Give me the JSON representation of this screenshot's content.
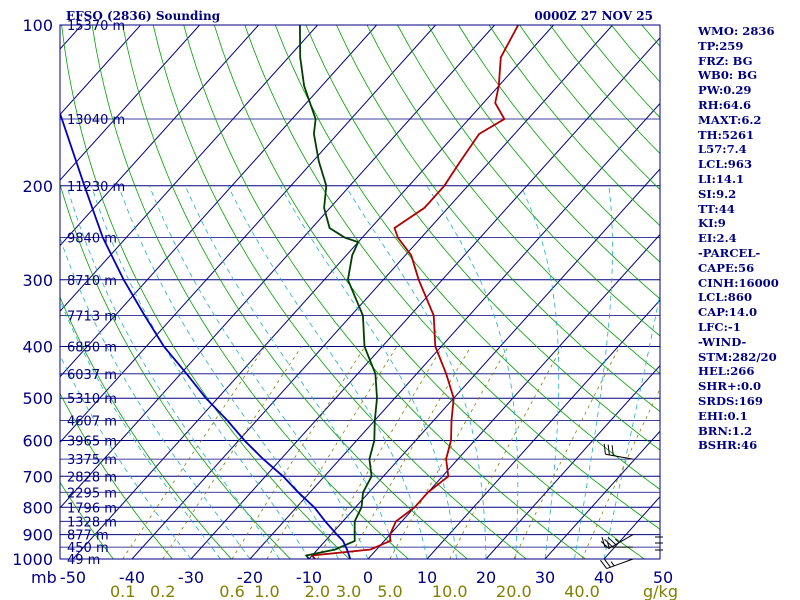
{
  "chart_data": {
    "type": "skew-t",
    "title": "EFSO (2836) Sounding",
    "valid_time": "0000Z 27 NOV 25",
    "pressure_levels_mb": [
      100,
      200,
      300,
      400,
      500,
      600,
      700,
      800,
      900,
      1000
    ],
    "y_axis_unit": "mb",
    "x_axis_temperature_ticks": [
      -50,
      -40,
      -30,
      -20,
      -10,
      0,
      10,
      20,
      30,
      40,
      50
    ],
    "x_axis_mixing_ratio_ticks": [
      "0.1",
      "0.2",
      "0.6",
      "1.0",
      "2.0",
      "3.0",
      "5.0",
      "10.0",
      "20.0",
      "40.0"
    ],
    "x_axis_mixing_ratio_unit": "g/kg",
    "height_labels": [
      {
        "p": 100,
        "text": "15370 m"
      },
      {
        "p": 150,
        "text": "13040 m"
      },
      {
        "p": 200,
        "text": "11230 m"
      },
      {
        "p": 250,
        "text": "9840 m"
      },
      {
        "p": 300,
        "text": "8710 m"
      },
      {
        "p": 350,
        "text": "7713 m"
      },
      {
        "p": 400,
        "text": "6850 m"
      },
      {
        "p": 450,
        "text": "6037 m"
      },
      {
        "p": 500,
        "text": "5310 m"
      },
      {
        "p": 550,
        "text": "4607 m"
      },
      {
        "p": 600,
        "text": "3965 m"
      },
      {
        "p": 650,
        "text": "3375 m"
      },
      {
        "p": 700,
        "text": "2828 m"
      },
      {
        "p": 750,
        "text": "2295 m"
      },
      {
        "p": 800,
        "text": "1796 m"
      },
      {
        "p": 850,
        "text": "1328 m"
      },
      {
        "p": 900,
        "text": "877 m"
      },
      {
        "p": 950,
        "text": "450 m"
      },
      {
        "p": 1000,
        "text": "49 m"
      }
    ],
    "series": [
      {
        "name": "temperature",
        "unit": "C",
        "color": "#b00000",
        "points": [
          [
            1000,
            -9
          ],
          [
            985,
            -10
          ],
          [
            960,
            -1
          ],
          [
            925,
            1
          ],
          [
            900,
            0
          ],
          [
            850,
            -1
          ],
          [
            800,
            0
          ],
          [
            750,
            0
          ],
          [
            700,
            1
          ],
          [
            650,
            -2
          ],
          [
            600,
            -4
          ],
          [
            550,
            -7
          ],
          [
            500,
            -10
          ],
          [
            450,
            -15
          ],
          [
            400,
            -21
          ],
          [
            350,
            -26
          ],
          [
            300,
            -34
          ],
          [
            270,
            -39
          ],
          [
            250,
            -44
          ],
          [
            240,
            -46
          ],
          [
            220,
            -44
          ],
          [
            200,
            -44
          ],
          [
            180,
            -45
          ],
          [
            160,
            -46
          ],
          [
            150,
            -44
          ],
          [
            140,
            -48
          ],
          [
            130,
            -50
          ],
          [
            115,
            -54
          ],
          [
            100,
            -56
          ]
        ]
      },
      {
        "name": "dewpoint",
        "unit": "C",
        "color": "#004000",
        "points": [
          [
            1000,
            -10
          ],
          [
            985,
            -11
          ],
          [
            960,
            -7
          ],
          [
            925,
            -5
          ],
          [
            900,
            -6
          ],
          [
            850,
            -8
          ],
          [
            800,
            -9
          ],
          [
            750,
            -11
          ],
          [
            700,
            -12
          ],
          [
            650,
            -15
          ],
          [
            600,
            -17
          ],
          [
            550,
            -20
          ],
          [
            500,
            -23
          ],
          [
            450,
            -27
          ],
          [
            400,
            -33
          ],
          [
            350,
            -38
          ],
          [
            300,
            -46
          ],
          [
            270,
            -49
          ],
          [
            255,
            -50
          ],
          [
            250,
            -53
          ],
          [
            240,
            -57
          ],
          [
            220,
            -61
          ],
          [
            200,
            -64
          ],
          [
            180,
            -69
          ],
          [
            160,
            -74
          ],
          [
            150,
            -76
          ],
          [
            130,
            -83
          ],
          [
            115,
            -88
          ],
          [
            100,
            -93
          ]
        ]
      },
      {
        "name": "parcel",
        "unit": "C",
        "color": "#0000c0",
        "points": [
          [
            1000,
            -3
          ],
          [
            960,
            -5
          ],
          [
            925,
            -7
          ],
          [
            900,
            -9
          ],
          [
            850,
            -13
          ],
          [
            800,
            -17
          ],
          [
            750,
            -22
          ],
          [
            700,
            -27
          ],
          [
            650,
            -33
          ],
          [
            600,
            -39
          ],
          [
            550,
            -45
          ],
          [
            500,
            -52
          ],
          [
            450,
            -59
          ],
          [
            400,
            -67
          ],
          [
            350,
            -75
          ],
          [
            300,
            -84
          ],
          [
            250,
            -94
          ],
          [
            200,
            -105
          ],
          [
            150,
            -119
          ],
          [
            120,
            -130
          ],
          [
            100,
            -138
          ]
        ]
      }
    ],
    "wind_barbs": [
      {
        "p": 650,
        "direction_deg": 280,
        "speed_kt": 30
      },
      {
        "p": 900,
        "direction_deg": 240,
        "speed_kt": 35
      },
      {
        "p": 950,
        "direction_deg": 270,
        "speed_kt": 15
      },
      {
        "p": 1000,
        "direction_deg": 250,
        "speed_kt": 25
      }
    ]
  },
  "indices": [
    "WMO: 2836",
    "TP:259",
    "FRZ: BG",
    "WB0: BG",
    "PW:0.29",
    "RH:64.6",
    "MAXT:6.2",
    "TH:5261",
    "L57:7.4",
    "LCL:963",
    "LI:14.1",
    "SI:9.2",
    "TT:44",
    "KI:9",
    "EI:2.4",
    "-PARCEL-",
    "CAPE:56",
    "CINH:16000",
    "LCL:860",
    "CAP:14.0",
    "LFC:-1",
    "-WIND-",
    "STM:282/20",
    "HEL:266",
    "SHR+:0.0",
    "SRDS:169",
    "EHI:0.1",
    "BRN:1.2",
    "BSHR:46"
  ],
  "colors": {
    "axis": "#000080",
    "isobar": "#000080",
    "isotherm": "#000080",
    "dry_adiabat": "#00a000",
    "moist_adiabat": "#20b0c0",
    "mixing_ratio": "#808000"
  }
}
